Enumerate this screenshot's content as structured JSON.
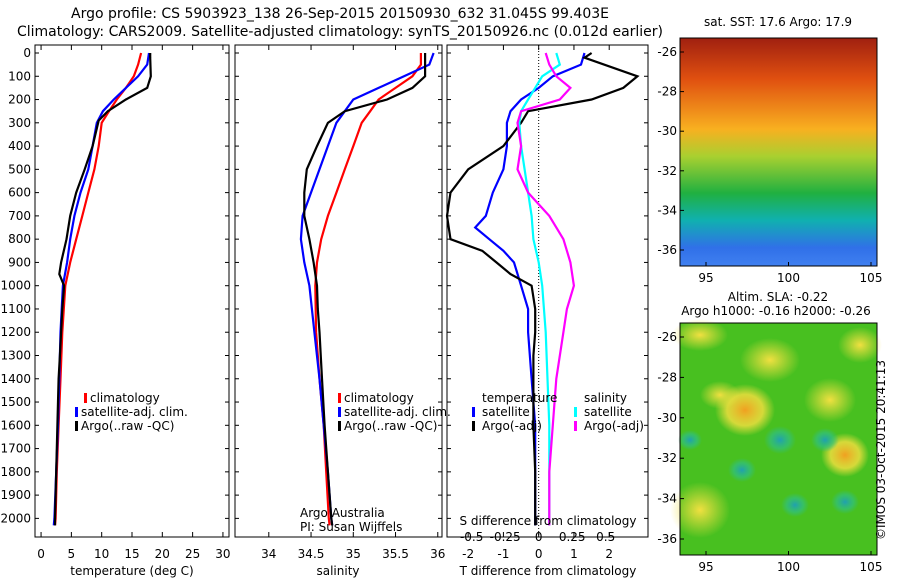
{
  "header": {
    "line1": "Argo profile: CS 5903923_138 26-Sep-2015 20150930_632 31.045S 99.403E",
    "line2": "Climatology: CARS2009. Satellite-adjusted climatology: synTS_20150926.nc (0.012d earlier)"
  },
  "colors": {
    "climatology": "#ff0000",
    "satellite": "#0000ff",
    "argo": "#000000",
    "satellite_salinity": "#00ffff",
    "argo_salinity": "#ff00ff"
  },
  "depth_ticks": [
    0,
    100,
    200,
    300,
    400,
    500,
    600,
    700,
    800,
    900,
    1000,
    1100,
    1200,
    1300,
    1400,
    1500,
    1600,
    1700,
    1800,
    1900,
    2000
  ],
  "sst_map": {
    "label": "sat. SST: 17.6 Argo: 17.9",
    "lat_ticks": [
      "-26",
      "-28",
      "-30",
      "-32",
      "-34",
      "-36"
    ],
    "lon_ticks": [
      "95",
      "100",
      "105"
    ]
  },
  "sla_map": {
    "label1": "Altim. SLA: -0.22",
    "label2": "Argo h1000: -0.16 h2000: -0.26",
    "lat_ticks": [
      "-26",
      "-28",
      "-30",
      "-32",
      "-34",
      "-36"
    ],
    "lon_ticks": [
      "95",
      "100",
      "105"
    ]
  },
  "footer": {
    "credit": "©IMOS 03-Oct-2015 20:41:13"
  },
  "chart_data": [
    {
      "type": "line",
      "xlabel": "temperature (deg C)",
      "xlim": [
        -1,
        31
      ],
      "ylim": [
        2080,
        0
      ],
      "x_ticks": [
        0,
        5,
        10,
        15,
        20,
        25,
        30
      ],
      "legend": [
        "climatology",
        "satellite-adj. clim.",
        "Argo(..raw -QC)"
      ],
      "legend_position": "lower-middle",
      "series": [
        {
          "name": "climatology",
          "depth": [
            0,
            50,
            100,
            150,
            200,
            250,
            300,
            400,
            500,
            600,
            700,
            800,
            900,
            1000,
            1200,
            1400,
            1600,
            1800,
            2000,
            2030
          ],
          "values": [
            16.5,
            16.0,
            15.3,
            14.0,
            12.5,
            11.2,
            10.0,
            9.5,
            8.8,
            7.8,
            6.8,
            5.8,
            4.8,
            4.0,
            3.5,
            3.2,
            2.9,
            2.6,
            2.4,
            2.3
          ]
        },
        {
          "name": "satellite-adj. clim.",
          "depth": [
            0,
            50,
            100,
            150,
            200,
            250,
            300,
            400,
            500,
            600,
            700,
            800,
            900,
            1000,
            1200,
            1400,
            1600,
            1800,
            2000,
            2030
          ],
          "values": [
            17.8,
            17.5,
            16.0,
            14.0,
            12.0,
            10.2,
            9.2,
            8.5,
            7.8,
            6.5,
            5.5,
            4.8,
            4.3,
            3.6,
            3.2,
            3.0,
            2.8,
            2.5,
            2.2,
            2.1
          ]
        },
        {
          "name": "Argo(..raw -QC)",
          "depth": [
            0,
            20,
            100,
            150,
            200,
            250,
            290,
            400,
            500,
            600,
            700,
            800,
            900,
            950,
            1000,
            1100,
            1200,
            1300,
            1400,
            1500,
            1600,
            1700,
            1800,
            1900,
            2000,
            2030
          ],
          "values": [
            18.0,
            18.0,
            18.1,
            17.5,
            14.0,
            11.0,
            9.5,
            8.5,
            7.2,
            5.8,
            4.8,
            4.2,
            3.3,
            3.0,
            3.8,
            3.5,
            3.3,
            3.1,
            2.9,
            2.8,
            2.7,
            2.6,
            2.5,
            2.4,
            2.3,
            2.3
          ]
        }
      ]
    },
    {
      "type": "line",
      "xlabel": "salinity",
      "xlim": [
        33.6,
        36.05
      ],
      "ylim": [
        2080,
        0
      ],
      "x_ticks": [
        34,
        34.5,
        35,
        35.5,
        36
      ],
      "legend": [
        "climatology",
        "satellite-adj. clim.",
        "Argo(..raw -QC)"
      ],
      "legend_position": "lower-middle",
      "annotation": [
        "Argo Australia",
        "PI: Susan Wijffels"
      ],
      "series": [
        {
          "name": "climatology",
          "depth": [
            0,
            50,
            100,
            150,
            200,
            250,
            300,
            400,
            500,
            600,
            700,
            800,
            900,
            1000,
            1200,
            1400,
            1600,
            1800,
            2000,
            2030
          ],
          "values": [
            35.8,
            35.8,
            35.7,
            35.5,
            35.3,
            35.2,
            35.1,
            35.0,
            34.9,
            34.8,
            34.7,
            34.62,
            34.57,
            34.55,
            34.56,
            34.6,
            34.65,
            34.68,
            34.71,
            34.72
          ]
        },
        {
          "name": "satellite-adj. clim.",
          "depth": [
            0,
            50,
            100,
            150,
            200,
            250,
            300,
            400,
            500,
            600,
            700,
            800,
            900,
            1000,
            1200,
            1400,
            1600,
            1800,
            2000,
            2030
          ],
          "values": [
            35.95,
            35.9,
            35.6,
            35.3,
            35.0,
            34.9,
            34.8,
            34.7,
            34.6,
            34.5,
            34.4,
            34.38,
            34.42,
            34.48,
            34.54,
            34.6,
            34.65,
            34.7,
            34.74,
            34.75
          ]
        },
        {
          "name": "Argo(..raw -QC)",
          "depth": [
            0,
            40,
            100,
            150,
            200,
            250,
            300,
            400,
            500,
            600,
            700,
            800,
            900,
            1000,
            1100,
            1200,
            1400,
            1600,
            1800,
            2000,
            2030
          ],
          "values": [
            35.85,
            35.85,
            35.85,
            35.7,
            35.4,
            34.9,
            34.7,
            34.57,
            34.45,
            34.42,
            34.42,
            34.48,
            34.53,
            34.57,
            34.58,
            34.6,
            34.63,
            34.66,
            34.7,
            34.74,
            34.75
          ]
        }
      ]
    },
    {
      "type": "line",
      "xlabel": "T difference from climatology",
      "xlim": [
        -2.6,
        3.1
      ],
      "ylim": [
        2080,
        0
      ],
      "x_ticks": [
        -2,
        -1,
        0,
        1,
        2
      ],
      "top_label": "S difference from climatology",
      "top_ticks": [
        {
          "label": "-0.5",
          "x": -1.9
        },
        {
          "label": "-0.25",
          "x": -0.95
        },
        {
          "label": "0",
          "x": 0
        },
        {
          "label": "0.25",
          "x": 0.95
        },
        {
          "label": "0.5",
          "x": 1.9
        }
      ],
      "legend_temperature_title": "temperature",
      "legend_salinity_title": "salinity",
      "legend_temperature": [
        "satellite",
        "Argo(-adj)"
      ],
      "legend_salinity": [
        "satellite",
        "Argo(-adj)"
      ],
      "legend_position": "lower-middle",
      "series": [
        {
          "name": "temperature satellite",
          "depth": [
            0,
            50,
            100,
            150,
            200,
            250,
            300,
            400,
            500,
            600,
            700,
            750,
            800,
            850,
            900,
            1000,
            1100,
            1200,
            1400,
            1600,
            1800,
            2000,
            2030
          ],
          "values": [
            1.3,
            1.2,
            0.4,
            0.0,
            -0.5,
            -0.8,
            -0.9,
            -0.9,
            -1.0,
            -1.3,
            -1.5,
            -1.8,
            -1.4,
            -1.0,
            -0.7,
            -0.5,
            -0.3,
            -0.3,
            -0.2,
            -0.1,
            -0.1,
            -0.1,
            -0.1
          ]
        },
        {
          "name": "temperature Argo(-adj)",
          "depth": [
            0,
            20,
            100,
            150,
            200,
            250,
            300,
            400,
            500,
            600,
            700,
            800,
            850,
            900,
            950,
            1000,
            1100,
            1200,
            1300,
            1400,
            1600,
            1800,
            2000,
            2030
          ],
          "values": [
            1.5,
            1.3,
            2.8,
            2.4,
            1.5,
            -0.3,
            -0.5,
            -1.0,
            -2.0,
            -2.5,
            -2.6,
            -2.5,
            -1.6,
            -1.2,
            -0.8,
            -0.2,
            -0.1,
            -0.1,
            -0.15,
            -0.15,
            -0.15,
            -0.1,
            -0.1,
            -0.1
          ]
        },
        {
          "name": "salinity satellite",
          "depth": [
            0,
            50,
            100,
            150,
            200,
            250,
            300,
            400,
            500,
            600,
            700,
            800,
            900,
            1000,
            1200,
            1400,
            1600,
            1800,
            2000,
            2030
          ],
          "values": [
            0.5,
            0.6,
            0.1,
            -0.1,
            -0.3,
            -0.5,
            -0.55,
            -0.5,
            -0.4,
            -0.3,
            -0.2,
            -0.15,
            0.0,
            0.1,
            0.2,
            0.25,
            0.3,
            0.3,
            0.3,
            0.3
          ]
        },
        {
          "name": "salinity Argo(-adj)",
          "depth": [
            0,
            50,
            100,
            150,
            200,
            250,
            300,
            400,
            500,
            600,
            700,
            800,
            900,
            1000,
            1100,
            1200,
            1400,
            1600,
            1800,
            2000,
            2030
          ],
          "values": [
            0.2,
            0.3,
            0.5,
            0.9,
            0.6,
            -0.5,
            -0.6,
            -0.5,
            -0.6,
            -0.3,
            0.3,
            0.7,
            0.9,
            1.0,
            0.8,
            0.7,
            0.5,
            0.4,
            0.3,
            0.3,
            0.3
          ]
        }
      ]
    }
  ]
}
